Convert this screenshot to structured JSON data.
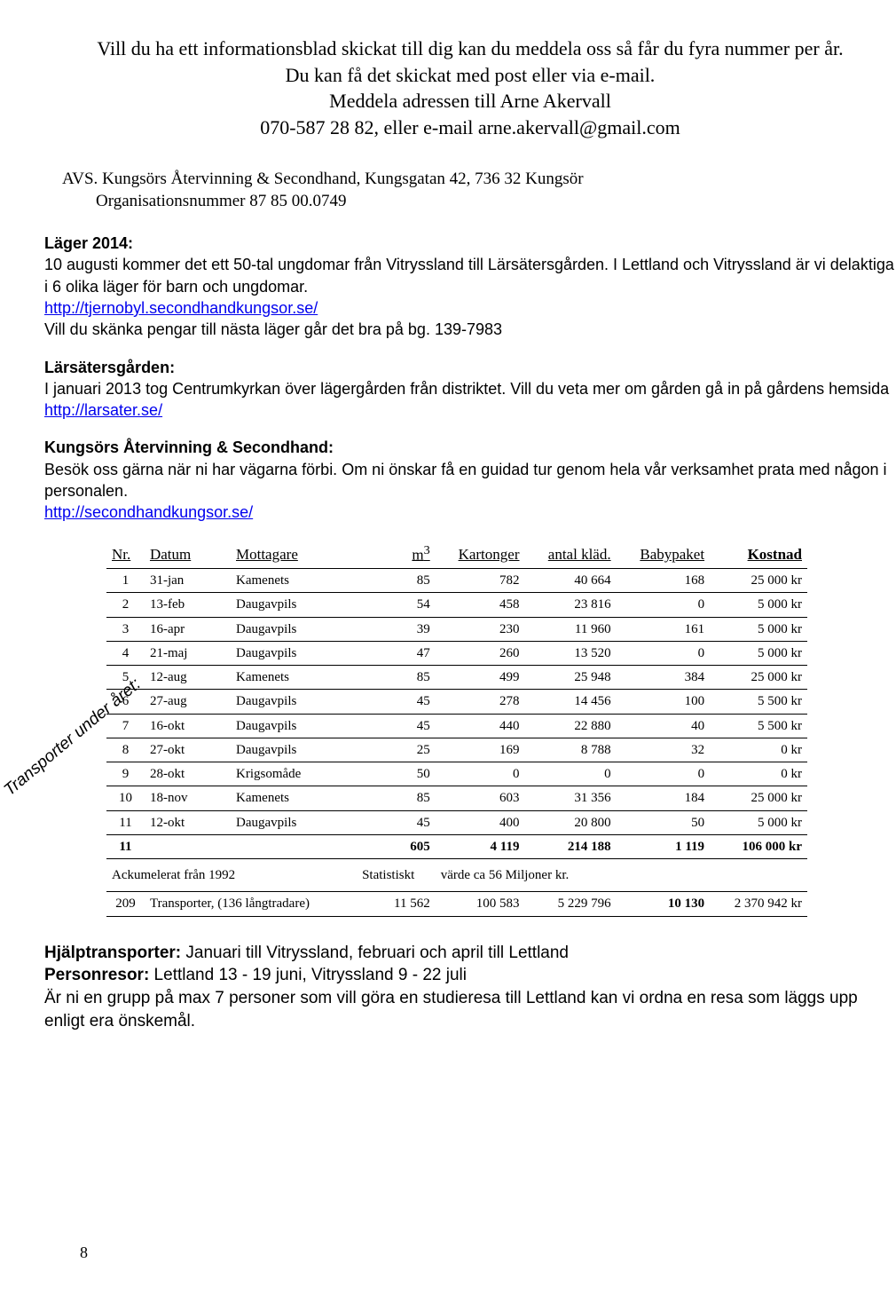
{
  "header": {
    "line1": "Vill du ha ett informationsblad skickat till dig kan du meddela oss så får du fyra nummer per år.",
    "line2": "Du kan få det skickat med post eller via e-mail.",
    "line3": "Meddela adressen till Arne Akervall",
    "line4": "070-587 28 82, eller e-mail arne.akervall@gmail.com"
  },
  "avs": {
    "label": "AVS.",
    "text": "Kungsörs Återvinning & Secondhand, Kungsgatan 42, 736 32 Kungsör",
    "org": "Organisationsnummer 87 85 00.0749"
  },
  "lager": {
    "heading": "Läger 2014:",
    "p1": "10 augusti kommer det ett 50-tal ungdomar från Vitryssland till Lärsätersgården. I Lettland och Vitryssland är vi delaktiga i 6 olika läger för barn och ungdomar.",
    "link": "http://tjernobyl.secondhandkungsor.se/",
    "p2": "Vill du skänka pengar till nästa läger går det bra på bg. 139-7983"
  },
  "larsaters": {
    "heading": "Lärsätersgården:",
    "p1a": "I januari 2013 tog Centrumkyrkan över lägergården från distriktet. Vill du veta mer om gården gå in på gårdens hemsida ",
    "link": "http://larsater.se/"
  },
  "secondhand": {
    "heading": "Kungsörs Återvinning & Secondhand:",
    "p1": "Besök oss gärna när ni har vägarna förbi. Om ni önskar få en guidad tur genom hela vår verksamhet prata med någon i personalen.",
    "link": "http://secondhandkungsor.se/"
  },
  "rotated_label": "Transporter under året:",
  "table": {
    "headers": [
      "Nr.",
      "Datum",
      "Mottagare",
      "m³",
      "Kartonger",
      "antal kläd.",
      "Babypaket",
      "Kostnad"
    ],
    "rows": [
      [
        "1",
        "31-jan",
        "Kamenets",
        "85",
        "782",
        "40 664",
        "168",
        "25 000 kr"
      ],
      [
        "2",
        "13-feb",
        "Daugavpils",
        "54",
        "458",
        "23 816",
        "0",
        "5 000 kr"
      ],
      [
        "3",
        "16-apr",
        "Daugavpils",
        "39",
        "230",
        "11 960",
        "161",
        "5 000 kr"
      ],
      [
        "4",
        "21-maj",
        "Daugavpils",
        "47",
        "260",
        "13 520",
        "0",
        "5 000 kr"
      ],
      [
        "5",
        "12-aug",
        "Kamenets",
        "85",
        "499",
        "25 948",
        "384",
        "25 000 kr"
      ],
      [
        "6",
        "27-aug",
        "Daugavpils",
        "45",
        "278",
        "14 456",
        "100",
        "5 500 kr"
      ],
      [
        "7",
        "16-okt",
        "Daugavpils",
        "45",
        "440",
        "22 880",
        "40",
        "5 500 kr"
      ],
      [
        "8",
        "27-okt",
        "Daugavpils",
        "25",
        "169",
        "8 788",
        "32",
        "0 kr"
      ],
      [
        "9",
        "28-okt",
        "Krigsomåde",
        "50",
        "0",
        "0",
        "0",
        "0 kr"
      ],
      [
        "10",
        "18-nov",
        "Kamenets",
        "85",
        "603",
        "31 356",
        "184",
        "25 000 kr"
      ],
      [
        "11",
        "12-okt",
        "Daugavpils",
        "45",
        "400",
        "20 800",
        "50",
        "5 000 kr"
      ]
    ],
    "total": [
      "11",
      "",
      "",
      "605",
      "4 119",
      "214 188",
      "1 119",
      "106 000 kr"
    ],
    "ack_label": "Ackumelerat från 1992",
    "ack_stat": "Statistiskt",
    "ack_value": "värde ca 56  Miljoner kr.",
    "grand": [
      "209",
      "Transporter, (136 långtradare)",
      "11 562",
      "100 583",
      "5 229 796",
      "10 130",
      "2 370 942 kr"
    ]
  },
  "bottom": {
    "hj_label": "Hjälptransporter:",
    "hj_text": " Januari till Vitryssland, februari och april till Lettland",
    "pr_label": "Personresor:",
    "pr_text": " Lettland 13 - 19 juni, Vitryssland 9 - 22 juli",
    "p3": " Är ni en grupp på max 7 personer som vill göra en studieresa till Lettland kan vi ordna en resa som läggs upp enligt era önskemål."
  },
  "page_number": "8"
}
